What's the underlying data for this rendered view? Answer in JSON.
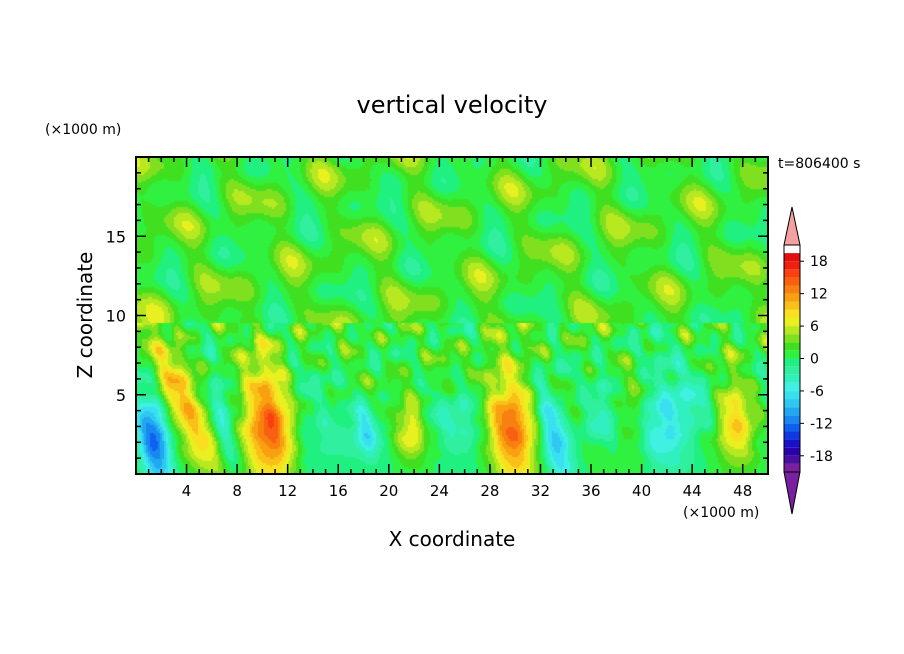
{
  "chart_data": {
    "type": "heatmap",
    "title": "vertical velocity",
    "xlabel": "X coordinate",
    "ylabel": "Z coordinate",
    "x_unit": "(×1000 m)",
    "y_unit": "(×1000 m)",
    "time_label": "t=806400 s",
    "xlim": [
      0,
      50
    ],
    "ylim": [
      0,
      20
    ],
    "x_ticks": [
      4,
      8,
      12,
      16,
      20,
      24,
      28,
      32,
      36,
      40,
      44,
      48
    ],
    "x_minor_step": 1,
    "y_ticks": [
      5,
      10,
      15
    ],
    "y_minor_step": 1,
    "colorbar": {
      "levels": [
        -21,
        -19.5,
        -18,
        -16.5,
        -15,
        -13.5,
        -12,
        -10.5,
        -9,
        -7.5,
        -6,
        -4.5,
        -3,
        -1.5,
        0,
        1.5,
        3,
        4.5,
        6,
        7.5,
        9,
        10.5,
        12,
        13.5,
        15,
        16.5,
        18,
        19.5,
        21
      ],
      "tick_labels": [
        "18",
        "12",
        "6",
        "0",
        "-6",
        "-12",
        "-18"
      ],
      "tick_values": [
        18,
        12,
        6,
        0,
        -6,
        -12,
        -18
      ],
      "range": [
        -21,
        21
      ],
      "colors": [
        "#7a1fa2",
        "#4a0f9e",
        "#2a00a8",
        "#1a10c8",
        "#1038e0",
        "#1060f0",
        "#1888f0",
        "#20a8f0",
        "#30c8f0",
        "#38e0f0",
        "#40f0e0",
        "#30f0c0",
        "#30f0a0",
        "#20f080",
        "#30f040",
        "#40e020",
        "#80e020",
        "#b8e820",
        "#e8f020",
        "#f8e020",
        "#f8c018",
        "#f8a010",
        "#f88010",
        "#f86010",
        "#f84010",
        "#f02010",
        "#e01010",
        "#f4a0a0"
      ]
    },
    "features": [
      {
        "x": 1.4,
        "z": 2.0,
        "sx": 0.9,
        "sz": 2.2,
        "w": -13,
        "tilt": 0.2
      },
      {
        "x": 4.3,
        "z": 3.6,
        "sx": 1.3,
        "sz": 3.4,
        "w": 9,
        "tilt": 0.55
      },
      {
        "x": 7.0,
        "z": 2.8,
        "sx": 0.7,
        "sz": 2.4,
        "w": -8,
        "tilt": 0.3
      },
      {
        "x": 10.5,
        "z": 2.8,
        "sx": 1.5,
        "sz": 2.8,
        "w": 14,
        "tilt": 0.1
      },
      {
        "x": 14.0,
        "z": 3.0,
        "sx": 1.4,
        "sz": 2.5,
        "w": -3.5,
        "tilt": 0.3
      },
      {
        "x": 18.2,
        "z": 2.8,
        "sx": 0.7,
        "sz": 1.4,
        "w": -7,
        "tilt": 0.2
      },
      {
        "x": 21.7,
        "z": 2.9,
        "sx": 0.8,
        "sz": 1.3,
        "w": 7,
        "tilt": 0.0
      },
      {
        "x": 26.0,
        "z": 3.2,
        "sx": 1.3,
        "sz": 1.5,
        "w": -5,
        "tilt": 0.2
      },
      {
        "x": 29.8,
        "z": 2.8,
        "sx": 1.5,
        "sz": 2.6,
        "w": 13,
        "tilt": 0.1
      },
      {
        "x": 33.0,
        "z": 2.6,
        "sx": 0.8,
        "sz": 2.4,
        "w": -10,
        "tilt": 0.3
      },
      {
        "x": 36.8,
        "z": 4.2,
        "sx": 0.9,
        "sz": 1.6,
        "w": -4,
        "tilt": 0.0
      },
      {
        "x": 39.2,
        "z": 3.0,
        "sx": 0.8,
        "sz": 2.0,
        "w": 4,
        "tilt": 0.2
      },
      {
        "x": 41.5,
        "z": 2.4,
        "sx": 1.4,
        "sz": 1.6,
        "w": -7,
        "tilt": 0.2
      },
      {
        "x": 44.0,
        "z": 4.8,
        "sx": 2.0,
        "sz": 2.4,
        "w": -4,
        "tilt": 0.6
      },
      {
        "x": 47.2,
        "z": 2.9,
        "sx": 1.2,
        "sz": 2.2,
        "w": 9,
        "tilt": 0.0
      }
    ]
  }
}
